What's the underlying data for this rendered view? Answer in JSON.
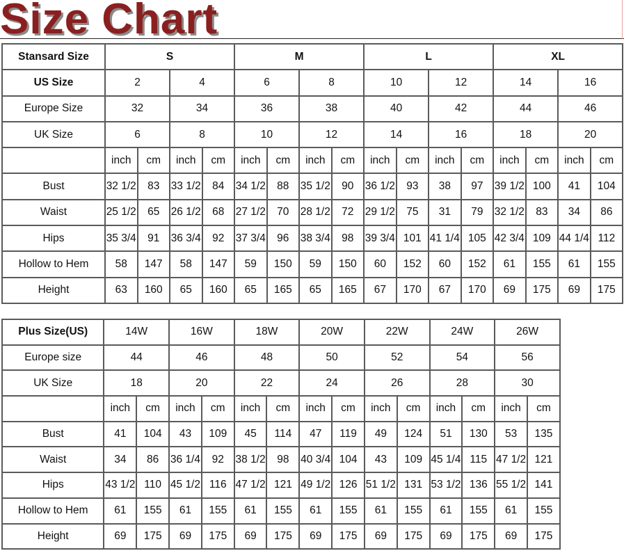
{
  "title": "Size Chart",
  "standard": {
    "header_label": "Stansard Size",
    "groups": [
      "S",
      "M",
      "L",
      "XL"
    ],
    "us_label": "US Size",
    "us": [
      "2",
      "4",
      "6",
      "8",
      "10",
      "12",
      "14",
      "16"
    ],
    "europe_label": "Europe Size",
    "europe": [
      "32",
      "34",
      "36",
      "38",
      "40",
      "42",
      "44",
      "46"
    ],
    "uk_label": "UK Size",
    "uk": [
      "6",
      "8",
      "10",
      "12",
      "14",
      "16",
      "18",
      "20"
    ],
    "units": [
      "inch",
      "cm",
      "inch",
      "cm",
      "inch",
      "cm",
      "inch",
      "cm",
      "inch",
      "cm",
      "inch",
      "cm",
      "inch",
      "cm",
      "inch",
      "cm"
    ],
    "measures": [
      {
        "label": "Bust",
        "values": [
          "32 1/2",
          "83",
          "33 1/2",
          "84",
          "34 1/2",
          "88",
          "35 1/2",
          "90",
          "36 1/2",
          "93",
          "38",
          "97",
          "39 1/2",
          "100",
          "41",
          "104"
        ]
      },
      {
        "label": "Waist",
        "values": [
          "25 1/2",
          "65",
          "26 1/2",
          "68",
          "27 1/2",
          "70",
          "28 1/2",
          "72",
          "29 1/2",
          "75",
          "31",
          "79",
          "32 1/2",
          "83",
          "34",
          "86"
        ]
      },
      {
        "label": "Hips",
        "values": [
          "35 3/4",
          "91",
          "36 3/4",
          "92",
          "37 3/4",
          "96",
          "38 3/4",
          "98",
          "39 3/4",
          "101",
          "41 1/4",
          "105",
          "42 3/4",
          "109",
          "44 1/4",
          "112"
        ]
      },
      {
        "label": "Hollow to Hem",
        "values": [
          "58",
          "147",
          "58",
          "147",
          "59",
          "150",
          "59",
          "150",
          "60",
          "152",
          "60",
          "152",
          "61",
          "155",
          "61",
          "155"
        ]
      },
      {
        "label": "Height",
        "values": [
          "63",
          "160",
          "65",
          "160",
          "65",
          "165",
          "65",
          "165",
          "67",
          "170",
          "67",
          "170",
          "69",
          "175",
          "69",
          "175"
        ]
      }
    ]
  },
  "plus": {
    "header_label": "Plus Size(US)",
    "us": [
      "14W",
      "16W",
      "18W",
      "20W",
      "22W",
      "24W",
      "26W"
    ],
    "europe_label": "Europe size",
    "europe": [
      "44",
      "46",
      "48",
      "50",
      "52",
      "54",
      "56"
    ],
    "uk_label": "UK Size",
    "uk": [
      "18",
      "20",
      "22",
      "24",
      "26",
      "28",
      "30"
    ],
    "units": [
      "inch",
      "cm",
      "inch",
      "cm",
      "inch",
      "cm",
      "inch",
      "cm",
      "inch",
      "cm",
      "inch",
      "cm",
      "inch",
      "cm"
    ],
    "measures": [
      {
        "label": "Bust",
        "values": [
          "41",
          "104",
          "43",
          "109",
          "45",
          "114",
          "47",
          "119",
          "49",
          "124",
          "51",
          "130",
          "53",
          "135"
        ]
      },
      {
        "label": "Waist",
        "values": [
          "34",
          "86",
          "36 1/4",
          "92",
          "38 1/2",
          "98",
          "40 3/4",
          "104",
          "43",
          "109",
          "45 1/4",
          "115",
          "47 1/2",
          "121"
        ]
      },
      {
        "label": "Hips",
        "values": [
          "43 1/2",
          "110",
          "45 1/2",
          "116",
          "47 1/2",
          "121",
          "49 1/2",
          "126",
          "51 1/2",
          "131",
          "53 1/2",
          "136",
          "55 1/2",
          "141"
        ]
      },
      {
        "label": "Hollow to Hem",
        "values": [
          "61",
          "155",
          "61",
          "155",
          "61",
          "155",
          "61",
          "155",
          "61",
          "155",
          "61",
          "155",
          "61",
          "155"
        ]
      },
      {
        "label": "Height",
        "values": [
          "69",
          "175",
          "69",
          "175",
          "69",
          "175",
          "69",
          "175",
          "69",
          "175",
          "69",
          "175",
          "69",
          "175"
        ]
      }
    ]
  },
  "colors": {
    "title": "#8b1f1f",
    "title_shadow": "#8a8a8a",
    "grid": "#5a5a5a"
  }
}
